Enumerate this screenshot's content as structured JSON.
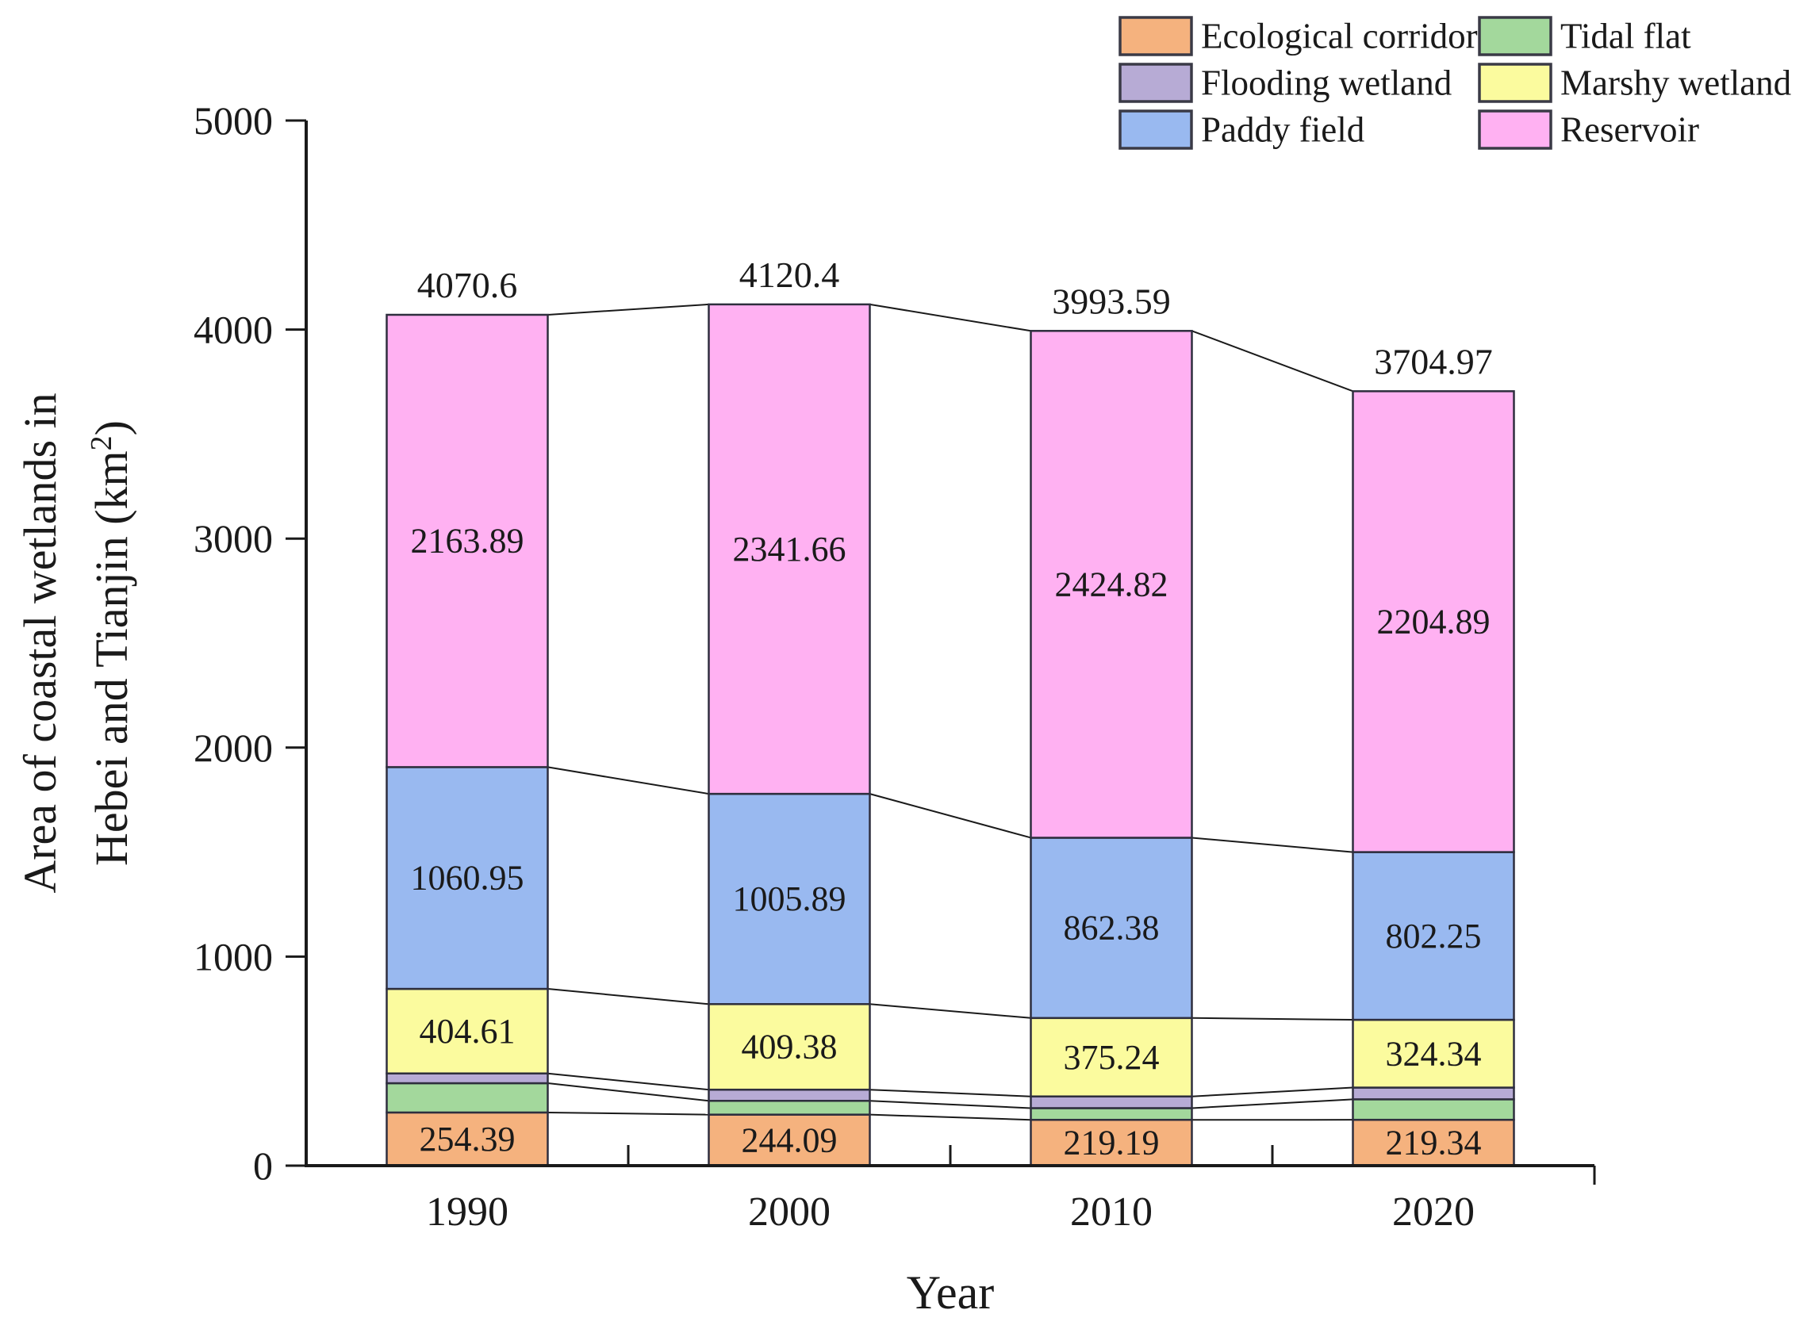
{
  "figure": {
    "background": "#ffffff",
    "axis_color": "#1a1a1a",
    "connector_line_color": "#1a1a1a",
    "segment_outline_color": "#2e2e3e",
    "total_label_color": "#1a1a1a"
  },
  "y_axis": {
    "title_line1": "Area of coastal wetlands in",
    "title_line2_pre": "Hebei and Tianjin (km",
    "title_line2_sup": "2",
    "title_line2_post": ")",
    "tick_labels": [
      "0",
      "1000",
      "2000",
      "3000",
      "4000",
      "5000"
    ]
  },
  "x_axis": {
    "title": "Year",
    "tick_labels": [
      "1990",
      "2000",
      "2010",
      "2020"
    ]
  },
  "legend": {
    "columns": [
      [
        "Ecological corridor",
        "Flooding wetland",
        "Paddy field"
      ],
      [
        "Tidal flat",
        "Marshy wetland",
        "Reservoir"
      ]
    ]
  },
  "chart_data": {
    "type": "bar",
    "stacked": true,
    "title": "",
    "xlabel": "Year",
    "ylabel": "Area of coastal wetlands in Hebei and Tianjin (km²)",
    "categories": [
      "1990",
      "2000",
      "2010",
      "2020"
    ],
    "ylim": [
      0,
      5000
    ],
    "yticks": [
      0,
      1000,
      2000,
      3000,
      4000,
      5000
    ],
    "grid": false,
    "legend_position": "top-right",
    "series": [
      {
        "name": "Ecological corridor",
        "color": "#f5b27e",
        "label_color": "#5c2f1b",
        "values": [
          254.39,
          244.09,
          219.19,
          219.34
        ],
        "value_labels": [
          "254.39",
          "244.09",
          "219.19",
          "219.34"
        ],
        "show_labels": true,
        "estimated": false
      },
      {
        "name": "Tidal flat",
        "color": "#a3d89c",
        "label_color": "#2f4f2a",
        "values": [
          140.0,
          66.0,
          56.0,
          98.0
        ],
        "value_labels": [
          "",
          "",
          "",
          ""
        ],
        "show_labels": false,
        "estimated": true
      },
      {
        "name": "Flooding wetland",
        "color": "#b7abd5",
        "label_color": "#3c3358",
        "values": [
          46.76,
          53.38,
          55.96,
          56.15
        ],
        "value_labels": [
          "",
          "",
          "",
          ""
        ],
        "show_labels": false,
        "estimated": true
      },
      {
        "name": "Marshy wetland",
        "color": "#fbfb9e",
        "label_color": "#4f4f20",
        "values": [
          404.61,
          409.38,
          375.24,
          324.34
        ],
        "value_labels": [
          "404.61",
          "409.38",
          "375.24",
          "324.34"
        ],
        "show_labels": true,
        "estimated": false
      },
      {
        "name": "Paddy field",
        "color": "#99b9f0",
        "label_color": "#23406e",
        "values": [
          1060.95,
          1005.89,
          862.38,
          802.25
        ],
        "value_labels": [
          "1060.95",
          "1005.89",
          "862.38",
          "802.25"
        ],
        "show_labels": true,
        "estimated": false
      },
      {
        "name": "Reservoir",
        "color": "#ffb1f2",
        "label_color": "#5c2b57",
        "values": [
          2163.89,
          2341.66,
          2424.82,
          2204.89
        ],
        "value_labels": [
          "2163.89",
          "2341.66",
          "2424.82",
          "2204.89"
        ],
        "show_labels": true,
        "estimated": false
      }
    ],
    "totals": [
      4070.6,
      4120.4,
      3993.59,
      3704.97
    ],
    "total_labels": [
      "4070.6",
      "4120.4",
      "3993.59",
      "3704.97"
    ]
  }
}
